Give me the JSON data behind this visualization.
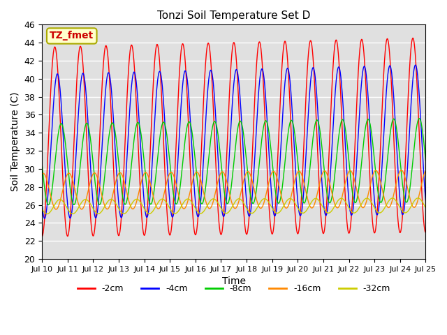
{
  "title": "Tonzi Soil Temperature Set D",
  "xlabel": "Time",
  "ylabel": "Soil Temperature (C)",
  "xlim": [
    0,
    15
  ],
  "ylim": [
    20,
    46
  ],
  "yticks": [
    20,
    22,
    24,
    26,
    28,
    30,
    32,
    34,
    36,
    38,
    40,
    42,
    44,
    46
  ],
  "xtick_labels": [
    "Jul 10",
    "Jul 11",
    "Jul 12",
    "Jul 13",
    "Jul 14",
    "Jul 15",
    "Jul 16",
    "Jul 17",
    "Jul 18",
    "Jul 19",
    "Jul 20",
    "Jul 21",
    "Jul 22",
    "Jul 23",
    "Jul 24",
    "Jul 25"
  ],
  "legend_labels": [
    "-2cm",
    "-4cm",
    "-8cm",
    "-16cm",
    "-32cm"
  ],
  "legend_colors": [
    "#ff0000",
    "#0000ff",
    "#00cc00",
    "#ff8800",
    "#cccc00"
  ],
  "annotation_text": "TZ_fmet",
  "annotation_box_color": "#ffffcc",
  "annotation_text_color": "#cc0000",
  "background_color": "#e0e0e0",
  "n_points": 2000,
  "series": {
    "cm2": {
      "color": "#ff0000",
      "mean": 33.0,
      "amplitude": 10.5,
      "phase": 0.0,
      "lag": 0.0,
      "mean_trend": 0.05,
      "amp_trend": 0.02
    },
    "cm4": {
      "color": "#0000ff",
      "mean": 32.5,
      "amplitude": 8.0,
      "phase": 0.0,
      "lag": 0.1,
      "mean_trend": 0.05,
      "amp_trend": 0.02
    },
    "cm8": {
      "color": "#00cc00",
      "mean": 30.5,
      "amplitude": 4.5,
      "phase": 0.0,
      "lag": 0.25,
      "mean_trend": 0.03,
      "amp_trend": 0.01
    },
    "cm16": {
      "color": "#ff8800",
      "mean": 27.5,
      "amplitude": 2.0,
      "phase": 0.0,
      "lag": 0.55,
      "mean_trend": 0.02,
      "amp_trend": 0.005
    },
    "cm32": {
      "color": "#cccc00",
      "mean": 25.8,
      "amplitude": 0.8,
      "phase": 0.0,
      "lag": 1.2,
      "mean_trend": 0.01,
      "amp_trend": 0.001
    }
  }
}
